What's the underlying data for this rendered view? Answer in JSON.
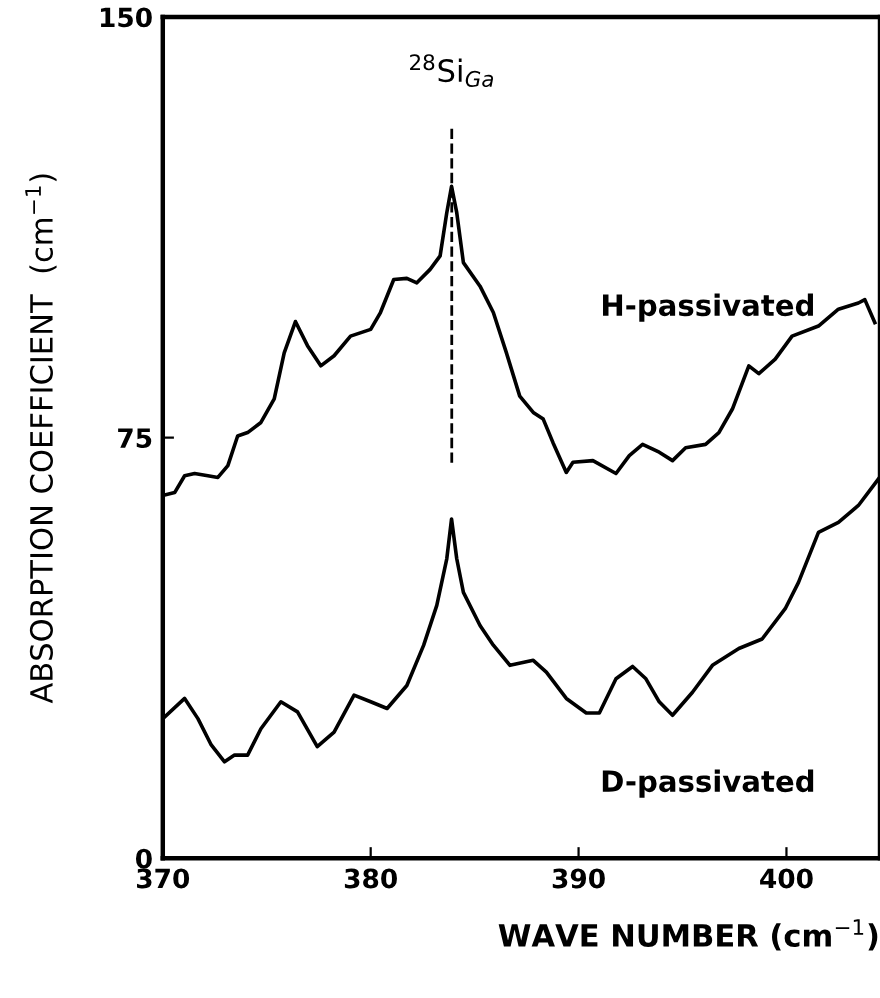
{
  "chart_data": {
    "type": "line",
    "xlabel": "WAVE NUMBER (cm$^{−1}$)",
    "ylabel": "ABSORPTION COEFFICIENT  (cm$^{−1}$)",
    "xlim": [
      370,
      404.5
    ],
    "ylim": [
      0,
      150
    ],
    "xticks": [
      370,
      380,
      390,
      400
    ],
    "yticks": [
      0,
      75,
      150
    ],
    "grid": false,
    "legend": false,
    "marker": "none",
    "line_style": "solid",
    "ref_lines": [
      {
        "axis": "x",
        "value": 383.9,
        "label": "$^{28}$Si$_{Ga}$",
        "line_style": "dashed",
        "color": "#000000"
      }
    ],
    "series": [
      {
        "name": "H-passivated",
        "color": "#000000",
        "x": [
          370.0,
          370.57,
          371.05,
          371.53,
          372.17,
          372.65,
          373.13,
          373.6,
          374.08,
          374.72,
          375.36,
          375.84,
          376.38,
          376.96,
          377.6,
          378.24,
          379.03,
          380.0,
          380.47,
          381.11,
          381.74,
          382.22,
          382.86,
          383.34,
          383.66,
          383.89,
          384.14,
          384.46,
          385.26,
          385.9,
          386.53,
          387.17,
          387.82,
          388.3,
          388.77,
          389.41,
          389.73,
          390.69,
          391.8,
          392.44,
          393.08,
          393.88,
          394.52,
          395.15,
          396.11,
          396.75,
          397.4,
          398.19,
          398.67,
          399.46,
          400.27,
          401.54,
          402.5,
          403.46,
          403.77,
          404.25
        ],
        "values": [
          64.7,
          65.2,
          68.2,
          68.6,
          68.2,
          67.9,
          70.0,
          75.3,
          75.9,
          77.7,
          81.9,
          90.1,
          95.7,
          91.4,
          87.8,
          89.6,
          93.1,
          94.3,
          97.3,
          103.2,
          103.4,
          102.6,
          105.0,
          107.4,
          115.1,
          119.8,
          115.1,
          106.2,
          102.0,
          97.3,
          90.1,
          82.4,
          79.5,
          78.3,
          74.1,
          68.8,
          70.6,
          70.9,
          68.6,
          71.8,
          73.8,
          72.4,
          70.9,
          73.2,
          73.8,
          75.9,
          80.1,
          87.8,
          86.4,
          89.0,
          93.1,
          94.9,
          97.9,
          99.0,
          99.6,
          95.5
        ]
      },
      {
        "name": "D-passivated",
        "color": "#000000",
        "x": [
          370.0,
          371.05,
          371.69,
          372.33,
          372.97,
          373.45,
          374.08,
          374.72,
          375.68,
          376.48,
          377.43,
          378.24,
          379.2,
          380.0,
          380.79,
          381.74,
          382.55,
          383.18,
          383.66,
          383.89,
          384.14,
          384.46,
          385.26,
          385.9,
          386.7,
          387.82,
          388.45,
          389.41,
          390.37,
          391.0,
          391.8,
          392.6,
          393.24,
          393.88,
          394.52,
          395.48,
          396.44,
          397.71,
          398.83,
          399.94,
          400.58,
          401.54,
          402.5,
          403.46,
          404.42
        ],
        "values": [
          24.9,
          28.5,
          24.9,
          20.2,
          17.2,
          18.4,
          18.4,
          23.1,
          27.9,
          26.1,
          19.9,
          22.5,
          29.1,
          27.9,
          26.7,
          30.8,
          38.0,
          45.1,
          53.4,
          60.5,
          53.4,
          47.4,
          41.5,
          38.0,
          34.4,
          35.3,
          33.2,
          28.5,
          25.9,
          25.9,
          32.0,
          34.2,
          32.0,
          27.9,
          25.5,
          29.6,
          34.4,
          37.4,
          39.1,
          44.5,
          49.2,
          58.1,
          59.9,
          62.9,
          67.6
        ]
      }
    ]
  }
}
